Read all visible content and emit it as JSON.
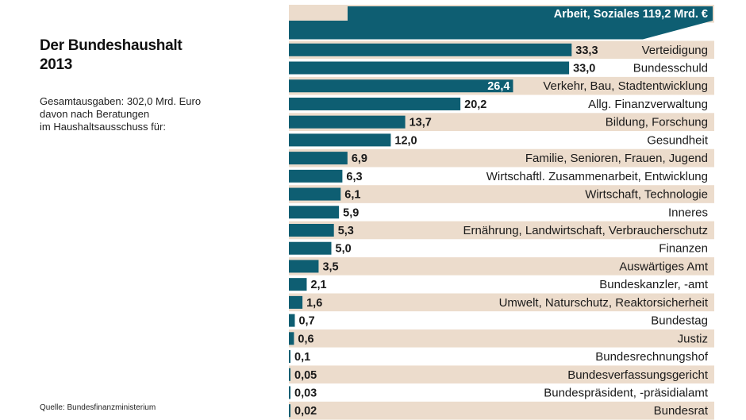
{
  "header": {
    "title_line1": "Der Bundeshaushalt",
    "title_line2": "2013",
    "subtitle_line1": "Gesamtausgaben: 302,0 Mrd. Euro",
    "subtitle_line2": "davon nach Beratungen",
    "subtitle_line3": "im Haushaltsausschuss für:"
  },
  "source": "Quelle: Bundesfinanzministerium",
  "colors": {
    "bar": "#0e5e72",
    "band": "#ecdccc",
    "background": "#ffffff"
  },
  "chart_data": {
    "type": "bar",
    "orientation": "horizontal",
    "title": "Der Bundeshaushalt 2013",
    "unit": "Mrd. Euro",
    "total": 302.0,
    "top_category": {
      "label": "Arbeit, Soziales 119,2 Mrd. €",
      "value": 119.2
    },
    "categories": [
      "Verteidigung",
      "Bundesschuld",
      "Verkehr, Bau, Stadtentwicklung",
      "Allg. Finanzverwaltung",
      "Bildung, Forschung",
      "Gesundheit",
      "Familie, Senioren, Frauen, Jugend",
      "Wirtschaftl. Zusammenarbeit, Entwicklung",
      "Wirtschaft, Technologie",
      "Inneres",
      "Ernährung, Landwirtschaft, Verbraucherschutz",
      "Finanzen",
      "Auswärtiges Amt",
      "Bundeskanzler, -amt",
      "Umwelt, Naturschutz, Reaktorsicherheit",
      "Bundestag",
      "Justiz",
      "Bundesrechnungshof",
      "Bundesverfassungsgericht",
      "Bundespräsident, -präsidialamt",
      "Bundesrat"
    ],
    "values": [
      33.3,
      33.0,
      26.4,
      20.2,
      13.7,
      12.0,
      6.9,
      6.3,
      6.1,
      5.9,
      5.3,
      5.0,
      3.5,
      2.1,
      1.6,
      0.7,
      0.6,
      0.1,
      0.05,
      0.03,
      0.02
    ],
    "value_labels": [
      "33,3",
      "33,0",
      "26,4",
      "20,2",
      "13,7",
      "12,0",
      "6,9",
      "6,3",
      "6,1",
      "5,9",
      "5,3",
      "5,0",
      "3,5",
      "2,1",
      "1,6",
      "0,7",
      "0,6",
      "0,1",
      "0,05",
      "0,03",
      "0,02"
    ],
    "inside_label_index": 2
  }
}
